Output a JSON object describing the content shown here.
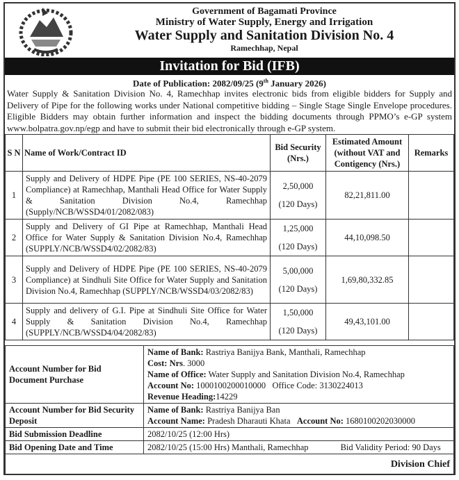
{
  "header": {
    "line1": "Government of Bagamati Province",
    "line2": "Ministry of Water Supply, Energy and Irrigation",
    "line3": "Water Supply and Sanitation Division No. 4",
    "line4": "Ramechhap, Nepal",
    "emblem": "nepal-government-emblem"
  },
  "title": "Invitation for Bid (IFB)",
  "publication": {
    "prefix": "Date of Publication: 2082/09/25 (9",
    "sup": "th",
    "suffix": " January 2026)"
  },
  "intro": "Water Supply & Sanitation Division No. 4, Ramechhap invites electronic bids from eligible bidders for Supply and Delivery of Pipe for the following works under National competitive bidding – Single Stage Single Envelope procedures. Eligible Bidders may obtain further information and inspect the bidding documents through PPMO’s e-GP system www.bolpatra.gov.np/egp and have to submit their bid electronically through e-GP system.",
  "table": {
    "headers": {
      "sn": "S N",
      "name": "Name of Work/Contract ID",
      "security": "Bid Security (Nrs.)",
      "amount": "Estimated Amount (without VAT and Contigency (Nrs.)",
      "remarks": "Remarks"
    },
    "rows": [
      {
        "sn": "1",
        "name": "Supply and Delivery of HDPE Pipe (PE 100 SERIES, NS-40-2079 Compliance) at Ramechhap, Manthali Head Office for Water Supply & Sanitation Division No.4, Ramechhap (Supply/NCB/WSSD4/01/2082/083)",
        "security": "2,50,000",
        "days": "(120 Days)",
        "amount": "82,21,811.00",
        "remarks": ""
      },
      {
        "sn": "2",
        "name": "Supply and Delivery of GI Pipe at Ramechhap, Manthali Head Office for Water Supply & Sanitation Division No.4, Ramechhap (SUPPLY/NCB/WSSD4/02/2082/83)",
        "security": "1,25,000",
        "days": "(120 Days)",
        "amount": "44,10,098.50",
        "remarks": ""
      },
      {
        "sn": "3",
        "name": "Supply and Delivery of HDPE Pipe (PE 100 SERIES, NS-40-2079 Compliance) at Sindhuli Site Office for Water Supply and Sanitation Division No.4, Ramechhap (SUPPLY/NCB/WSSD4/03/2082/83)",
        "security": "5,00,000",
        "days": "(120 Days)",
        "amount": "1,69,80,332.85",
        "remarks": ""
      },
      {
        "sn": "4",
        "name": "Supply and delivery of G.I. Pipe at Sindhuli Site Office for Water Supply & Sanitation Division No.4, Ramechhap (SUPPLY/NCB/WSSD4/04/2082/83)",
        "security": "1,50,000",
        "days": "(120 Days)",
        "amount": "49,43,101.00",
        "remarks": ""
      }
    ]
  },
  "details": {
    "doc_purchase": {
      "label": "Account Number for Bid Document Purchase",
      "bank_l": "Name of Bank:",
      "bank": " Rastriya Banijya Bank, Manthali, Ramechhap",
      "cost_l": "Cost:",
      "cost_n": " Nrs",
      "cost": ". 3000",
      "office_l": "Name of Office:",
      "office": " Water Supply and Sanitation Division No.4, Ramechhap",
      "acct_l": "Account No:",
      "acct": " 1000100200010000   Office Code: 3130224013",
      "rev_l": "Revenue Heading:",
      "rev": "14229"
    },
    "security_deposit": {
      "label": "Account Number for Bid Security Deposit",
      "bank_l": "Name of Bank:",
      "bank": " Rastriya Banijya Ban",
      "acname_l": "Account Name:",
      "acname": " Pradesh Dharauti Khata   ",
      "acct_l": "Account No:",
      "acct": " 1680100202030000"
    },
    "deadline": {
      "label": "Bid Submission Deadline",
      "value": "2082/10/25 (12:00 Hrs)"
    },
    "opening": {
      "label": "Bid Opening Date and Time",
      "value": "2082/10/25 (15:00 Hrs) Manthali, Ramechhap",
      "validity": "Bid Validity Period: 90 Days"
    }
  },
  "signature": "Division Chief"
}
